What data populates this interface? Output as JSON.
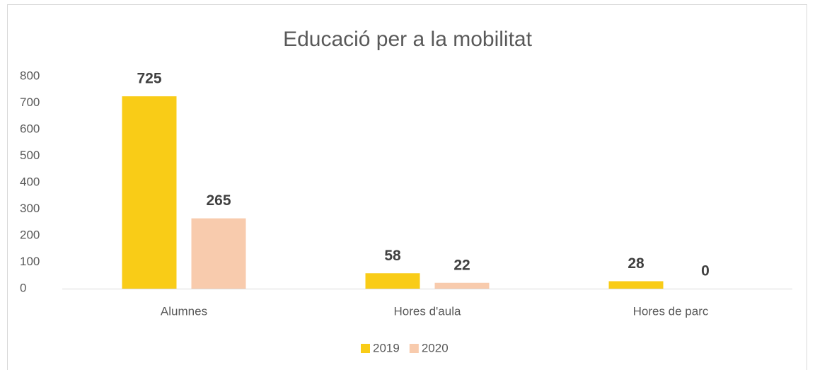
{
  "chart_data": {
    "type": "bar",
    "title": "Educació per a la mobilitat",
    "categories": [
      "Alumnes",
      "Hores d'aula",
      "Hores de parc"
    ],
    "series": [
      {
        "name": "2019",
        "color": "#f9cc17",
        "values": [
          725,
          58,
          28
        ]
      },
      {
        "name": "2020",
        "color": "#f8cbad",
        "values": [
          265,
          22,
          0
        ]
      }
    ],
    "ylim": [
      0,
      800
    ],
    "yticks": [
      0,
      100,
      200,
      300,
      400,
      500,
      600,
      700,
      800
    ],
    "grid": false,
    "legend": "bottom"
  }
}
